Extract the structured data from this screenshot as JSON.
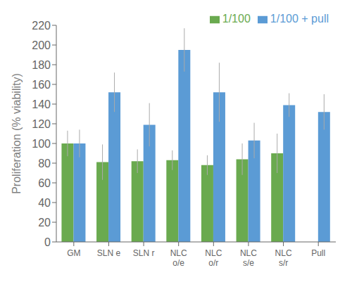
{
  "chart_data": {
    "type": "bar",
    "categories": [
      "GM",
      "SLN e",
      "SLN r",
      "NLC\no/e",
      "NLC\no/r",
      "NLC\ns/e",
      "NLC\ns/r",
      "Pull"
    ],
    "series": [
      {
        "name": "1/100",
        "color": "#6aaa4f",
        "values": [
          100,
          81,
          82,
          83,
          78,
          84,
          90,
          null
        ],
        "errors": [
          13,
          18,
          12,
          10,
          10,
          16,
          20,
          null
        ]
      },
      {
        "name": "1/100 + pull",
        "color": "#5b9bd5",
        "values": [
          100,
          152,
          119,
          195,
          152,
          103,
          139,
          132
        ],
        "errors": [
          14,
          20,
          22,
          22,
          30,
          18,
          12,
          18
        ]
      }
    ],
    "ylabel": "Proliferation (% viability)",
    "ylim": [
      0,
      220
    ],
    "yticks": [
      0,
      20,
      40,
      60,
      80,
      100,
      120,
      140,
      160,
      180,
      200,
      220
    ],
    "legend": "upper right",
    "grid": false
  }
}
